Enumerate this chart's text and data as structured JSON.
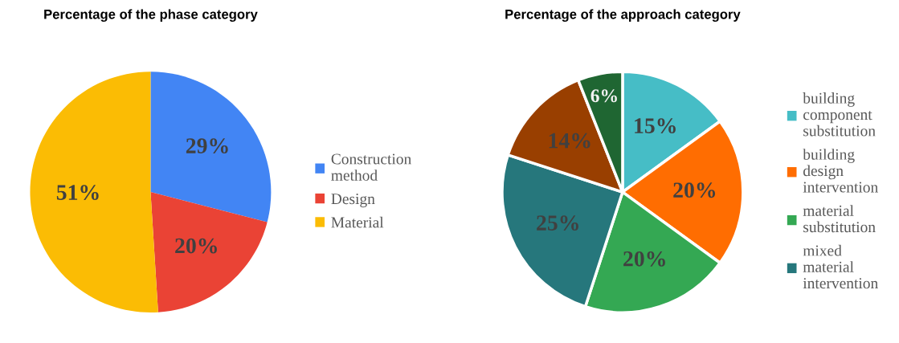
{
  "chart_data": [
    {
      "type": "pie",
      "title": "Percentage of the phase category",
      "categories": [
        "Construction method",
        "Design",
        "Material"
      ],
      "values": [
        29,
        20,
        51
      ],
      "value_labels": [
        "29%",
        "20%",
        "51%"
      ],
      "colors": [
        "#4285f4",
        "#ea4335",
        "#fbbc04"
      ],
      "legend": "right"
    },
    {
      "type": "pie",
      "title": "Percentage of the approach category",
      "categories": [
        "building component substitution",
        "building design intervention",
        "material substitution",
        "mixed material intervention",
        null,
        null
      ],
      "values": [
        15,
        20,
        20,
        25,
        14,
        6
      ],
      "value_labels": [
        "15%",
        "20%",
        "20%",
        "25%",
        "14%",
        "6%"
      ],
      "colors": [
        "#46bdc6",
        "#ff6d01",
        "#34a853",
        "#26777c",
        "#993f00",
        "#1f6632"
      ],
      "legend": "right"
    }
  ]
}
